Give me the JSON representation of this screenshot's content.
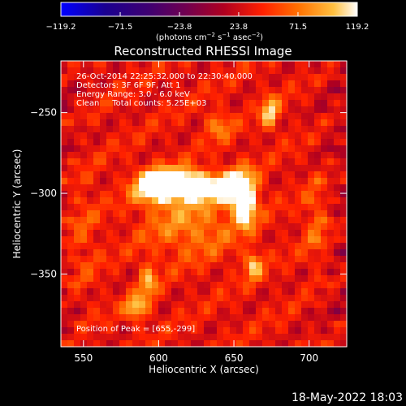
{
  "chart_data": {
    "type": "heatmap",
    "title": "Reconstructed RHESSI Image",
    "xlabel": "Heliocentric X (arcsec)",
    "ylabel": "Heliocentric Y (arcsec)",
    "xlim": [
      535,
      725
    ],
    "ylim": [
      -395,
      -218
    ],
    "x_ticks": [
      550,
      600,
      650,
      700
    ],
    "y_ticks": [
      -250,
      -300,
      -350
    ],
    "x_tick_labels": [
      "550",
      "600",
      "650",
      "700"
    ],
    "y_tick_labels": [
      "−250",
      "−300",
      "−350"
    ],
    "colorbar": {
      "range": [
        -119.2,
        119.2
      ],
      "ticks": [
        -119.2,
        -71.5,
        -23.8,
        23.8,
        71.5,
        119.2
      ],
      "tick_labels": [
        "−119.2",
        "−71.5",
        "−23.8",
        "23.8",
        "71.5",
        "119.2"
      ],
      "unit_parts": [
        "(photons cm",
        "−2",
        " s",
        "−1",
        " asec",
        "−2",
        ")"
      ]
    },
    "annotations": [
      "26-Oct-2014 22:25:32.000 to 22:30:40.000",
      "Detectors: 3F 6F 9F, Att 1",
      "Energy Range: 3.0 - 6.0 keV",
      "Clean     Total counts: 5.25E+03"
    ],
    "peak_label": "Position of Peak = [655,-299]",
    "peak": [
      655,
      -299
    ],
    "sources": [
      {
        "x": 598,
        "y": -296,
        "sx": 10,
        "sy": 7,
        "amp": 119.2
      },
      {
        "x": 613,
        "y": -294,
        "sx": 9,
        "sy": 6,
        "amp": 112
      },
      {
        "x": 629,
        "y": -296,
        "sx": 9,
        "sy": 6,
        "amp": 105
      },
      {
        "x": 655,
        "y": -298,
        "sx": 7,
        "sy": 9,
        "amp": 119.2
      },
      {
        "x": 645,
        "y": -296,
        "sx": 5,
        "sy": 5,
        "amp": 90
      },
      {
        "x": 658,
        "y": -312,
        "sx": 4,
        "sy": 7,
        "amp": 80
      },
      {
        "x": 622,
        "y": -320,
        "sx": 22,
        "sy": 14,
        "amp": 45
      },
      {
        "x": 663,
        "y": -345,
        "sx": 4,
        "sy": 6,
        "amp": 70
      },
      {
        "x": 674,
        "y": -250,
        "sx": 4,
        "sy": 7,
        "amp": 75
      },
      {
        "x": 585,
        "y": -371,
        "sx": 5,
        "sy": 5,
        "amp": 75
      },
      {
        "x": 593,
        "y": -355,
        "sx": 4,
        "sy": 8,
        "amp": 60
      },
      {
        "x": 640,
        "y": -258,
        "sx": 6,
        "sy": 6,
        "amp": 45
      },
      {
        "x": 705,
        "y": -318,
        "sx": 6,
        "sy": 20,
        "amp": 35
      },
      {
        "x": 548,
        "y": -325,
        "sx": 8,
        "sy": 30,
        "amp": 25
      }
    ],
    "background_level": 35
  },
  "footer": {
    "timestamp": "18-May-2022 18:03"
  }
}
